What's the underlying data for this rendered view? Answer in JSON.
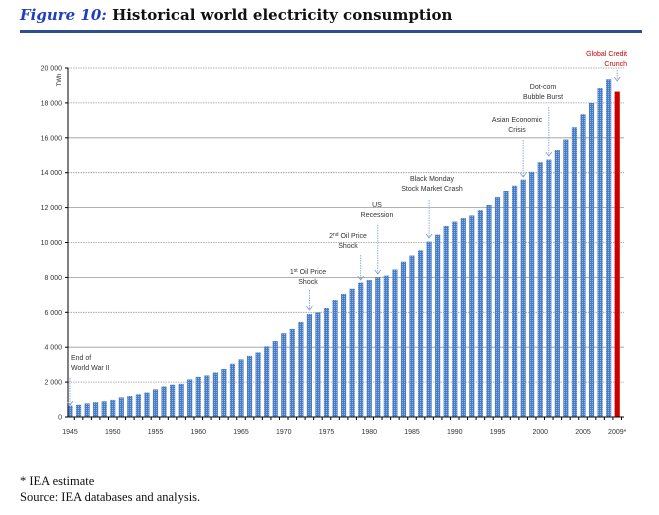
{
  "title": {
    "figure_label": "Figure 10:",
    "text": "Historical world electricity consumption"
  },
  "footnotes": {
    "estimate": "* IEA estimate",
    "source": "Source: IEA databases and analysis."
  },
  "colors": {
    "bar": "#4a7cc4",
    "estimate_bar": "#cc0000",
    "annotation_red": "#cc0000",
    "rule": "#2e4f8f",
    "title_blue": "#1f3fbf"
  },
  "chart_data": {
    "type": "bar",
    "title": "Historical world electricity consumption",
    "ylabel": "TWh",
    "xlabel": "",
    "ylim": [
      0,
      20000
    ],
    "grid": true,
    "yticks": [
      "0",
      "2 000",
      "4 000",
      "6 000",
      "8 000",
      "10 000",
      "12 000",
      "14 000",
      "16 000",
      "18 000",
      "20 000"
    ],
    "xticks": [
      "1945",
      "1950",
      "1955",
      "1960",
      "1965",
      "1970",
      "1975",
      "1980",
      "1985",
      "1990",
      "1995",
      "2000",
      "2005",
      "2009*"
    ],
    "x": [
      1945,
      1946,
      1947,
      1948,
      1949,
      1950,
      1951,
      1952,
      1953,
      1954,
      1955,
      1956,
      1957,
      1958,
      1959,
      1960,
      1961,
      1962,
      1963,
      1964,
      1965,
      1966,
      1967,
      1968,
      1969,
      1970,
      1971,
      1972,
      1973,
      1974,
      1975,
      1976,
      1977,
      1978,
      1979,
      1980,
      1981,
      1982,
      1983,
      1984,
      1985,
      1986,
      1987,
      1988,
      1989,
      1990,
      1991,
      1992,
      1993,
      1994,
      1995,
      1996,
      1997,
      1998,
      1999,
      2000,
      2001,
      2002,
      2003,
      2004,
      2005,
      2006,
      2007,
      2008,
      2009
    ],
    "values": [
      650,
      700,
      780,
      850,
      900,
      980,
      1120,
      1200,
      1300,
      1400,
      1580,
      1750,
      1850,
      1900,
      2150,
      2300,
      2380,
      2550,
      2750,
      3050,
      3300,
      3500,
      3700,
      4050,
      4350,
      4800,
      5050,
      5450,
      5900,
      6000,
      6250,
      6700,
      7050,
      7350,
      7700,
      7850,
      8000,
      8100,
      8450,
      8900,
      9250,
      9550,
      10050,
      10450,
      10950,
      11200,
      11400,
      11550,
      11850,
      12150,
      12600,
      12950,
      13250,
      13600,
      14050,
      14600,
      14750,
      15300,
      15900,
      16600,
      17350,
      18000,
      18850,
      19350,
      18650
    ],
    "estimate_year": 2009,
    "annotations": [
      {
        "year": 1945,
        "lines": [
          "End of",
          "World War II"
        ]
      },
      {
        "year": 1973,
        "num": "1",
        "sup": "st",
        "rest": " Oil Price",
        "line2": "Shock"
      },
      {
        "year": 1979,
        "num": "2",
        "sup": "nd",
        "rest": " Oil Price",
        "line2": "Shock"
      },
      {
        "year": 1981,
        "lines": [
          "US",
          "Recession"
        ]
      },
      {
        "year": 1987,
        "lines": [
          "Black Monday",
          "Stock Market Crash"
        ]
      },
      {
        "year": 1998,
        "lines": [
          "Asian Economic",
          "Crisis"
        ]
      },
      {
        "year": 2001,
        "lines": [
          "Dot-com",
          "Bubble Burst"
        ]
      },
      {
        "year": 2009,
        "lines": [
          "Global Credit",
          "Crunch"
        ],
        "red": true
      }
    ]
  }
}
